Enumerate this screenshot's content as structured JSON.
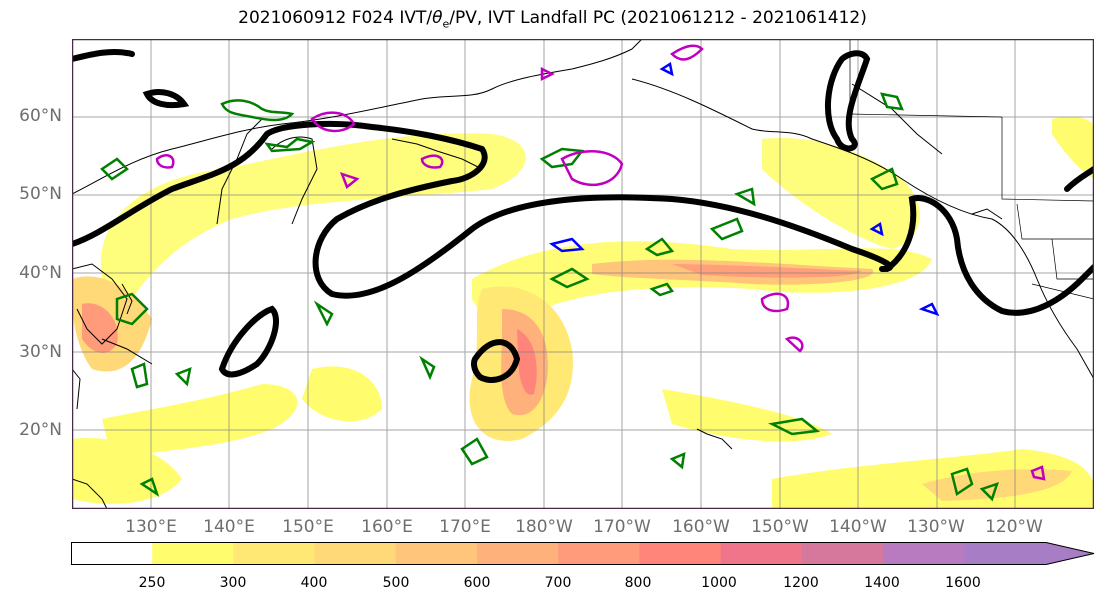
{
  "title": {
    "prefix": "2021060912 F024 IVT/",
    "theta": "θ",
    "theta_sub": "e",
    "suffix": "/PV, IVT Landfall PC (2021061212 - 2021061412)"
  },
  "map": {
    "lat_labels": [
      "60°N",
      "50°N",
      "40°N",
      "30°N",
      "20°N"
    ],
    "lon_labels": [
      "130°E",
      "140°E",
      "150°E",
      "160°E",
      "170°E",
      "180°W",
      "170°W",
      "160°W",
      "150°W",
      "140°W",
      "130°W",
      "120°W"
    ],
    "contour_colors": {
      "theta_e": "#000000",
      "pv_green": "#008000",
      "pv_magenta": "#c000c0",
      "pv_blue": "#0000ff"
    }
  },
  "colorbar": {
    "levels": [
      "250",
      "300",
      "400",
      "500",
      "600",
      "700",
      "800",
      "1000",
      "1200",
      "1400",
      "1600"
    ],
    "colors": [
      "#ffffff",
      "#fffd6e",
      "#ffe873",
      "#ffd877",
      "#ffc57a",
      "#ffb17b",
      "#ff9b7b",
      "#ff857a",
      "#f0748a",
      "#d6779c",
      "#b87bbf",
      "#a77dc5"
    ]
  }
}
